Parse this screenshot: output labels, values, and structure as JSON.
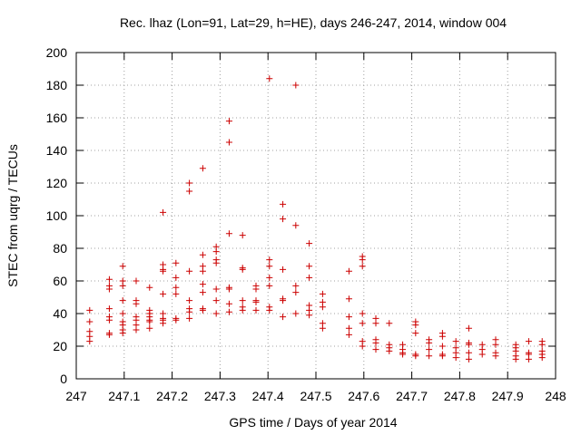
{
  "chart_data": {
    "type": "scatter",
    "title": "Rec. lhaz (Lon=91, Lat=29, h=HE), days 246-247, 2014, window 004",
    "xlabel": "GPS time / Days of year 2014",
    "ylabel": "STEC from uqrg / TECUs",
    "xlim": [
      247,
      248
    ],
    "ylim": [
      0,
      200
    ],
    "x_ticks": [
      247,
      247.1,
      247.2,
      247.3,
      247.4,
      247.5,
      247.6,
      247.7,
      247.8,
      247.9,
      248
    ],
    "x_tick_labels": [
      "247",
      "247.1",
      "247.2",
      "247.3",
      "247.4",
      "247.5",
      "247.6",
      "247.7",
      "247.8",
      "247.9",
      "248"
    ],
    "y_ticks": [
      0,
      20,
      40,
      60,
      80,
      100,
      120,
      140,
      160,
      180,
      200
    ],
    "y_tick_labels": [
      "0",
      "20",
      "40",
      "60",
      "80",
      "100",
      "120",
      "140",
      "160",
      "180",
      "200"
    ],
    "grid": true,
    "marker": "plus",
    "color": "#cc0000",
    "points": [
      [
        247.028,
        42
      ],
      [
        247.028,
        35
      ],
      [
        247.028,
        29
      ],
      [
        247.028,
        26
      ],
      [
        247.028,
        23
      ],
      [
        247.069,
        61
      ],
      [
        247.069,
        57
      ],
      [
        247.069,
        55
      ],
      [
        247.069,
        43
      ],
      [
        247.069,
        38
      ],
      [
        247.069,
        36
      ],
      [
        247.069,
        28
      ],
      [
        247.069,
        27
      ],
      [
        247.097,
        69
      ],
      [
        247.097,
        60
      ],
      [
        247.097,
        57
      ],
      [
        247.097,
        48
      ],
      [
        247.097,
        40
      ],
      [
        247.097,
        35
      ],
      [
        247.097,
        33
      ],
      [
        247.097,
        30
      ],
      [
        247.097,
        28
      ],
      [
        247.125,
        60
      ],
      [
        247.125,
        48
      ],
      [
        247.125,
        46
      ],
      [
        247.125,
        38
      ],
      [
        247.125,
        36
      ],
      [
        247.125,
        33
      ],
      [
        247.125,
        30
      ],
      [
        247.153,
        56
      ],
      [
        247.153,
        42
      ],
      [
        247.153,
        40
      ],
      [
        247.153,
        38
      ],
      [
        247.153,
        36
      ],
      [
        247.153,
        35
      ],
      [
        247.153,
        31
      ],
      [
        247.181,
        102
      ],
      [
        247.181,
        70
      ],
      [
        247.181,
        67
      ],
      [
        247.181,
        66
      ],
      [
        247.181,
        52
      ],
      [
        247.181,
        40
      ],
      [
        247.181,
        37
      ],
      [
        247.181,
        36
      ],
      [
        247.181,
        34
      ],
      [
        247.208,
        71
      ],
      [
        247.208,
        62
      ],
      [
        247.208,
        56
      ],
      [
        247.208,
        52
      ],
      [
        247.208,
        37
      ],
      [
        247.208,
        36
      ],
      [
        247.236,
        120
      ],
      [
        247.236,
        115
      ],
      [
        247.236,
        66
      ],
      [
        247.236,
        48
      ],
      [
        247.236,
        43
      ],
      [
        247.236,
        41
      ],
      [
        247.236,
        37
      ],
      [
        247.264,
        129
      ],
      [
        247.264,
        76
      ],
      [
        247.264,
        69
      ],
      [
        247.264,
        66
      ],
      [
        247.264,
        58
      ],
      [
        247.264,
        53
      ],
      [
        247.264,
        43
      ],
      [
        247.264,
        42
      ],
      [
        247.292,
        81
      ],
      [
        247.292,
        78
      ],
      [
        247.292,
        73
      ],
      [
        247.292,
        71
      ],
      [
        247.292,
        55
      ],
      [
        247.292,
        48
      ],
      [
        247.292,
        40
      ],
      [
        247.319,
        158
      ],
      [
        247.319,
        145
      ],
      [
        247.319,
        89
      ],
      [
        247.319,
        56
      ],
      [
        247.319,
        55
      ],
      [
        247.319,
        46
      ],
      [
        247.319,
        41
      ],
      [
        247.347,
        88
      ],
      [
        247.347,
        68
      ],
      [
        247.347,
        67
      ],
      [
        247.347,
        48
      ],
      [
        247.347,
        44
      ],
      [
        247.347,
        42
      ],
      [
        247.375,
        57
      ],
      [
        247.375,
        55
      ],
      [
        247.375,
        48
      ],
      [
        247.375,
        47
      ],
      [
        247.375,
        42
      ],
      [
        247.403,
        184
      ],
      [
        247.403,
        73
      ],
      [
        247.403,
        69
      ],
      [
        247.403,
        62
      ],
      [
        247.403,
        57
      ],
      [
        247.403,
        44
      ],
      [
        247.403,
        42
      ],
      [
        247.431,
        107
      ],
      [
        247.431,
        98
      ],
      [
        247.431,
        67
      ],
      [
        247.431,
        49
      ],
      [
        247.431,
        48
      ],
      [
        247.431,
        38
      ],
      [
        247.458,
        180
      ],
      [
        247.458,
        94
      ],
      [
        247.458,
        57
      ],
      [
        247.458,
        53
      ],
      [
        247.458,
        40
      ],
      [
        247.486,
        83
      ],
      [
        247.486,
        69
      ],
      [
        247.486,
        62
      ],
      [
        247.486,
        45
      ],
      [
        247.486,
        42
      ],
      [
        247.486,
        39
      ],
      [
        247.514,
        52
      ],
      [
        247.514,
        47
      ],
      [
        247.514,
        44
      ],
      [
        247.514,
        34
      ],
      [
        247.514,
        31
      ],
      [
        247.569,
        66
      ],
      [
        247.569,
        49
      ],
      [
        247.569,
        38
      ],
      [
        247.569,
        31
      ],
      [
        247.569,
        27
      ],
      [
        247.597,
        75
      ],
      [
        247.597,
        73
      ],
      [
        247.597,
        69
      ],
      [
        247.597,
        40
      ],
      [
        247.597,
        34
      ],
      [
        247.597,
        23
      ],
      [
        247.597,
        20
      ],
      [
        247.625,
        37
      ],
      [
        247.625,
        34
      ],
      [
        247.625,
        24
      ],
      [
        247.625,
        22
      ],
      [
        247.625,
        18
      ],
      [
        247.653,
        34
      ],
      [
        247.653,
        21
      ],
      [
        247.653,
        19
      ],
      [
        247.653,
        17
      ],
      [
        247.681,
        21
      ],
      [
        247.681,
        18
      ],
      [
        247.681,
        16
      ],
      [
        247.681,
        15
      ],
      [
        247.708,
        35
      ],
      [
        247.708,
        33
      ],
      [
        247.708,
        28
      ],
      [
        247.708,
        15
      ],
      [
        247.708,
        14
      ],
      [
        247.736,
        24
      ],
      [
        247.736,
        22
      ],
      [
        247.736,
        18
      ],
      [
        247.736,
        14
      ],
      [
        247.764,
        28
      ],
      [
        247.764,
        26
      ],
      [
        247.764,
        20
      ],
      [
        247.764,
        15
      ],
      [
        247.764,
        14
      ],
      [
        247.792,
        23
      ],
      [
        247.792,
        19
      ],
      [
        247.792,
        16
      ],
      [
        247.792,
        13
      ],
      [
        247.819,
        31
      ],
      [
        247.819,
        22
      ],
      [
        247.819,
        21
      ],
      [
        247.819,
        16
      ],
      [
        247.819,
        12
      ],
      [
        247.847,
        21
      ],
      [
        247.847,
        18
      ],
      [
        247.847,
        15
      ],
      [
        247.875,
        24
      ],
      [
        247.875,
        21
      ],
      [
        247.875,
        16
      ],
      [
        247.875,
        14
      ],
      [
        247.917,
        21
      ],
      [
        247.917,
        19
      ],
      [
        247.917,
        17
      ],
      [
        247.917,
        14
      ],
      [
        247.917,
        12
      ],
      [
        247.944,
        23
      ],
      [
        247.944,
        16
      ],
      [
        247.944,
        15
      ],
      [
        247.944,
        12
      ],
      [
        247.972,
        23
      ],
      [
        247.972,
        21
      ],
      [
        247.972,
        17
      ],
      [
        247.972,
        15
      ],
      [
        247.972,
        13
      ]
    ]
  }
}
